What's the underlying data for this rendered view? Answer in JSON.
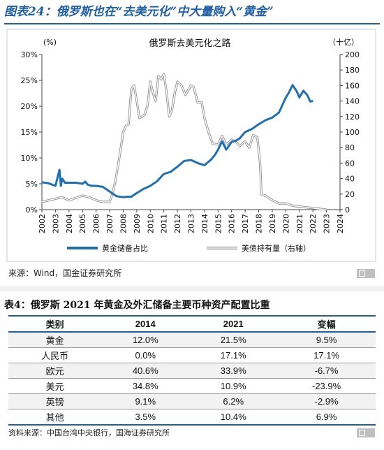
{
  "figure_title": "图表24：俄罗斯也在“去美元化”中大量购入“黄金”",
  "chart_data": {
    "type": "line",
    "title": "俄罗斯去美元化之路",
    "left_axis_unit": "(%)",
    "right_axis_unit": "（十亿）",
    "left_ylim": [
      0,
      30
    ],
    "left_ticks": [
      "0%",
      "5%",
      "10%",
      "15%",
      "20%",
      "25%",
      "30%"
    ],
    "right_ylim": [
      0,
      200
    ],
    "right_ticks": [
      "0",
      "20",
      "40",
      "60",
      "80",
      "100",
      "120",
      "140",
      "160",
      "180",
      "200"
    ],
    "xlim": [
      2002,
      2024
    ],
    "x_ticks": [
      "2002",
      "2003",
      "2004",
      "2005",
      "2006",
      "2007",
      "2008",
      "2009",
      "2010",
      "2011",
      "2012",
      "2013",
      "2014",
      "2015",
      "2016",
      "2017",
      "2018",
      "2019",
      "2020",
      "2021",
      "2022",
      "2023",
      "2024"
    ],
    "grid": false,
    "legend_position": "bottom",
    "series": [
      {
        "name": "黄金储备占比",
        "axis": "left",
        "color": "#1f6fb5",
        "x": [
          2002.0,
          2002.5,
          2003.0,
          2003.3,
          2003.4,
          2003.5,
          2003.7,
          2004.0,
          2004.5,
          2005.0,
          2005.2,
          2005.4,
          2005.7,
          2006.0,
          2006.5,
          2007.0,
          2007.5,
          2008.0,
          2008.3,
          2008.6,
          2009.0,
          2009.5,
          2010.0,
          2010.5,
          2011.0,
          2011.5,
          2012.0,
          2012.5,
          2013.0,
          2013.5,
          2014.0,
          2014.5,
          2014.8,
          2015.0,
          2015.3,
          2015.6,
          2016.0,
          2016.3,
          2016.6,
          2017.0,
          2017.5,
          2018.0,
          2018.5,
          2019.0,
          2019.5,
          2020.0,
          2020.2,
          2020.5,
          2020.8,
          2021.0,
          2021.3,
          2021.6,
          2021.8,
          2022.0
        ],
        "values": [
          5.3,
          5.1,
          4.6,
          7.7,
          4.6,
          6.0,
          5.2,
          5.2,
          5.2,
          5.0,
          5.4,
          4.8,
          4.6,
          4.6,
          4.4,
          3.5,
          2.6,
          2.4,
          2.5,
          2.5,
          3.2,
          4.0,
          4.6,
          5.5,
          6.9,
          7.3,
          8.3,
          9.4,
          9.6,
          9.0,
          8.6,
          9.7,
          10.7,
          11.6,
          13.2,
          11.6,
          13.1,
          13.3,
          13.8,
          15.0,
          15.6,
          16.5,
          17.3,
          17.8,
          18.8,
          21.7,
          22.5,
          24.1,
          22.9,
          21.7,
          23.0,
          22.1,
          20.9,
          21.0
        ]
      },
      {
        "name": "美债持有量（右轴）",
        "axis": "right",
        "color": "#b8b8b8",
        "x": [
          2002.0,
          2002.5,
          2003.0,
          2003.5,
          2004.0,
          2004.5,
          2005.0,
          2005.5,
          2006.0,
          2006.5,
          2007.0,
          2007.2,
          2007.4,
          2007.5,
          2007.7,
          2008.0,
          2008.2,
          2008.4,
          2008.6,
          2008.8,
          2009.0,
          2009.2,
          2009.4,
          2009.6,
          2009.8,
          2010.0,
          2010.2,
          2010.4,
          2010.6,
          2010.8,
          2011.0,
          2011.2,
          2011.4,
          2011.6,
          2011.8,
          2012.0,
          2012.3,
          2012.6,
          2013.0,
          2013.2,
          2013.5,
          2013.8,
          2014.0,
          2014.3,
          2014.6,
          2015.0,
          2015.3,
          2015.6,
          2016.0,
          2016.3,
          2016.6,
          2017.0,
          2017.3,
          2017.6,
          2017.9,
          2018.1,
          2018.2,
          2018.3,
          2018.5,
          2019.0,
          2019.5,
          2020.0,
          2020.5,
          2021.0,
          2021.5,
          2022.0,
          2022.5,
          2023.0
        ],
        "values": [
          10,
          12,
          14,
          16,
          12,
          15,
          18,
          16,
          12,
          10,
          10,
          20,
          35,
          45,
          65,
          100,
          108,
          110,
          155,
          160,
          140,
          118,
          120,
          123,
          135,
          165,
          150,
          140,
          172,
          168,
          175,
          151,
          120,
          128,
          150,
          165,
          160,
          148,
          160,
          158,
          138,
          138,
          118,
          100,
          85,
          84,
          95,
          84,
          90,
          88,
          82,
          88,
          80,
          96,
          93,
          60,
          20,
          19,
          18,
          12,
          8,
          8,
          5,
          4,
          3,
          2,
          1,
          0
        ]
      }
    ]
  },
  "source": "来源：Wind，国金证券研究所",
  "table": {
    "title": "表4：俄罗斯 2021 年黄金及外汇储备主要币种资产配置比重",
    "headers": [
      "类别",
      "2014",
      "2021",
      "变幅"
    ],
    "rows": [
      [
        "黄金",
        "12.0%",
        "21.5%",
        "9.5%"
      ],
      [
        "人民币",
        "0.0%",
        "17.1%",
        "17.1%"
      ],
      [
        "欧元",
        "40.6%",
        "33.9%",
        "-6.7%"
      ],
      [
        "美元",
        "34.8%",
        "10.9%",
        "-23.9%"
      ],
      [
        "英镑",
        "9.1%",
        "6.2%",
        "-2.9%"
      ],
      [
        "其他",
        "3.5%",
        "10.4%",
        "6.9%"
      ]
    ],
    "source": "资料来源：中国台湾中央银行，国海证券研究所"
  }
}
